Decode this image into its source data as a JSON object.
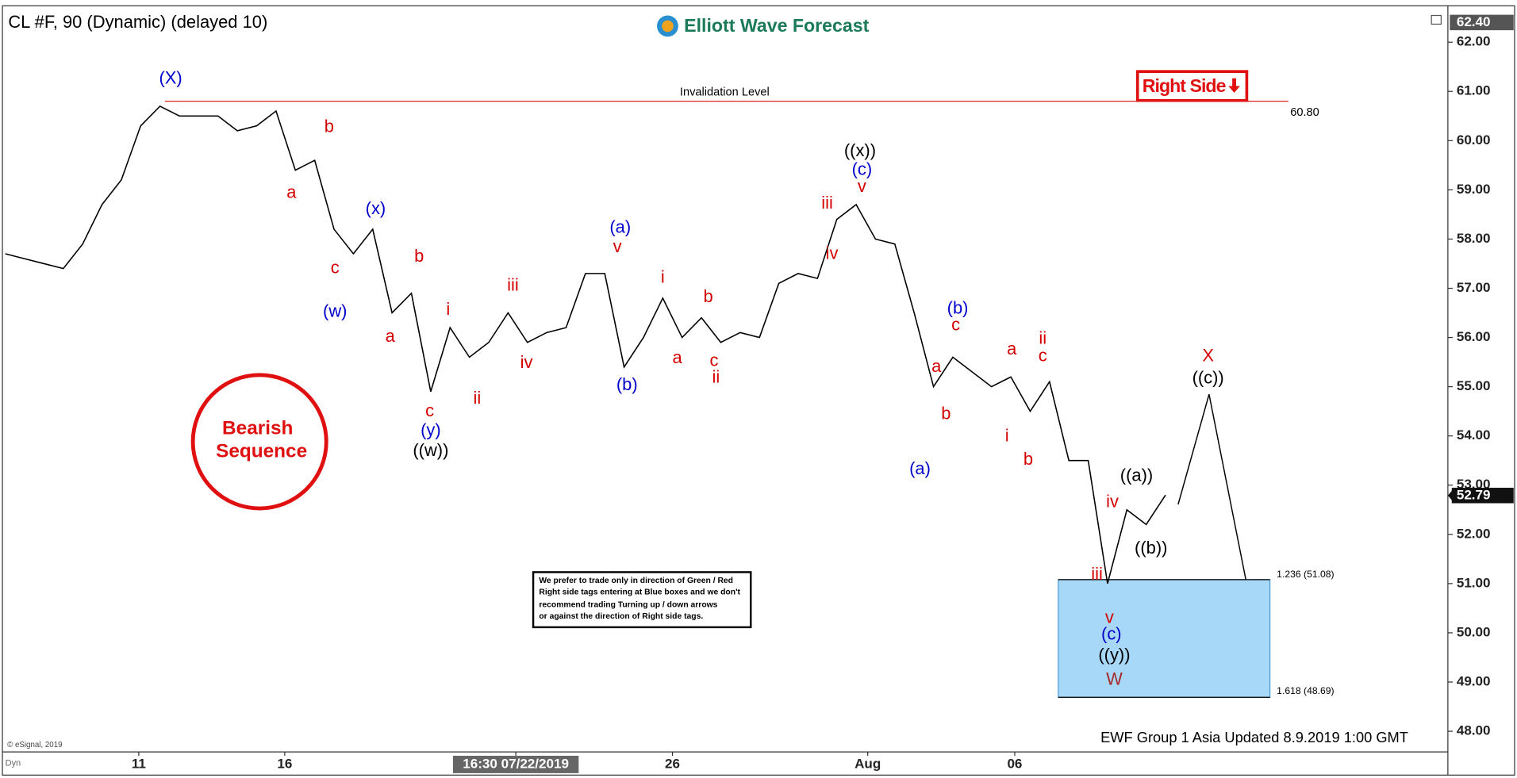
{
  "chart_data": {
    "type": "line",
    "title": "CL #F, 90 (Dynamic) (delayed 10)",
    "brand": "Elliott Wave Forecast",
    "footer": "EWF Group 1 Asia Updated 8.9.2019 1:00 GMT",
    "copyright": "© eSignal, 2019",
    "corner_label": "Dyn",
    "tag": "Right Side",
    "badge": [
      "Bearish",
      "Sequence"
    ],
    "disclaimer": [
      "We prefer to trade only in direction of Green / Red",
      "Right side tags entering at Blue boxes and we don't",
      "recommend trading Turning up / down arrows",
      "or against the direction of Right side tags."
    ],
    "color": "#000000",
    "values": [
      57.7,
      57.6,
      57.5,
      57.4,
      57.9,
      58.7,
      59.2,
      60.3,
      60.7,
      60.5,
      60.5,
      60.5,
      60.2,
      60.3,
      60.6,
      59.4,
      59.6,
      58.2,
      57.7,
      58.2,
      56.5,
      56.9,
      54.9,
      56.2,
      55.6,
      55.9,
      56.5,
      55.9,
      56.1,
      56.2,
      57.3,
      57.3,
      55.4,
      56.0,
      56.8,
      56.0,
      56.4,
      55.9,
      56.1,
      56.0,
      57.1,
      57.3,
      57.2,
      58.4,
      58.7,
      58.0,
      57.9,
      56.5,
      55.0,
      55.6,
      55.3,
      55.0,
      55.2,
      54.5,
      55.1,
      53.5,
      53.5,
      51.0,
      52.5,
      52.2,
      52.8
    ],
    "xlim": [
      -0.25,
      74.6
    ],
    "xticks": [
      {
        "value": 6.9,
        "label": "11"
      },
      {
        "value": 14.45,
        "label": "16"
      },
      {
        "value": 26.4,
        "label": "16:30 07/22/2019"
      },
      {
        "value": 34.5,
        "label": "26"
      },
      {
        "value": 44.6,
        "label": "Aug"
      },
      {
        "value": 52.2,
        "label": "06"
      }
    ],
    "ylim": [
      47.6,
      62.7
    ],
    "yticks": [
      {
        "value": 48,
        "label": "48.00"
      },
      {
        "value": 49,
        "label": "49.00"
      },
      {
        "value": 50,
        "label": "50.00"
      },
      {
        "value": 51,
        "label": "51.00"
      },
      {
        "value": 52,
        "label": "52.00"
      },
      {
        "value": 53,
        "label": "53.00"
      },
      {
        "value": 54,
        "label": "54.00"
      },
      {
        "value": 55,
        "label": "55.00"
      },
      {
        "value": 56,
        "label": "56.00"
      },
      {
        "value": 57,
        "label": "57.00"
      },
      {
        "value": 58,
        "label": "58.00"
      },
      {
        "value": 59,
        "label": "59.00"
      },
      {
        "value": 60,
        "label": "60.00"
      },
      {
        "value": 61,
        "label": "61.00"
      },
      {
        "value": 62,
        "label": "62.00"
      }
    ],
    "invalidation": {
      "label": "Invalidation Level",
      "value": 60.8,
      "value_label": "60.80",
      "color": "#e02020"
    },
    "target_box": {
      "color": "#a8d8f8",
      "top": 51.08,
      "top_label": "1.236 (51.08)",
      "bottom": 48.69,
      "bottom_label": "1.618 (48.69)"
    },
    "last_price": {
      "value": 52.79,
      "label": "52.79"
    },
    "high_price": {
      "value": 62.4,
      "label": "62.40"
    },
    "annotations": [
      {
        "text": "(X)",
        "color": "#0000cc"
      },
      {
        "text": "b",
        "color": "#d40000"
      },
      {
        "text": "a",
        "color": "#d40000"
      },
      {
        "text": "(x)",
        "color": "#0000cc"
      },
      {
        "text": "c",
        "color": "#d40000"
      },
      {
        "text": "(w)",
        "color": "#0000cc"
      },
      {
        "text": "b",
        "color": "#d40000"
      },
      {
        "text": "a",
        "color": "#d40000"
      },
      {
        "text": "iii",
        "color": "#d40000"
      },
      {
        "text": "i",
        "color": "#d40000"
      },
      {
        "text": "iv",
        "color": "#d40000"
      },
      {
        "text": "ii",
        "color": "#d40000"
      },
      {
        "text": "c",
        "color": "#d40000"
      },
      {
        "text": "(y)",
        "color": "#0000cc"
      },
      {
        "text": "((w))",
        "color": "#000000"
      },
      {
        "text": "(a)",
        "color": "#0000cc"
      },
      {
        "text": "v",
        "color": "#d40000"
      },
      {
        "text": "(b)",
        "color": "#0000cc"
      },
      {
        "text": "i",
        "color": "#d40000"
      },
      {
        "text": "a",
        "color": "#d40000"
      },
      {
        "text": "b",
        "color": "#d40000"
      },
      {
        "text": "c",
        "color": "#d40000"
      },
      {
        "text": "ii",
        "color": "#d40000"
      },
      {
        "text": "((x))",
        "color": "#000000"
      },
      {
        "text": "(c)",
        "color": "#0000cc"
      },
      {
        "text": "v",
        "color": "#d40000"
      },
      {
        "text": "iii",
        "color": "#d40000"
      },
      {
        "text": "iv",
        "color": "#d40000"
      },
      {
        "text": "(a)",
        "color": "#0000cc"
      },
      {
        "text": "a",
        "color": "#d40000"
      },
      {
        "text": "b",
        "color": "#d40000"
      },
      {
        "text": "(b)",
        "color": "#0000cc"
      },
      {
        "text": "c",
        "color": "#d40000"
      },
      {
        "text": "a",
        "color": "#d40000"
      },
      {
        "text": "ii",
        "color": "#d40000"
      },
      {
        "text": "c",
        "color": "#d40000"
      },
      {
        "text": "i",
        "color": "#d40000"
      },
      {
        "text": "b",
        "color": "#d40000"
      },
      {
        "text": "((a))",
        "color": "#000000"
      },
      {
        "text": "iv",
        "color": "#d40000"
      },
      {
        "text": "((b))",
        "color": "#000000"
      },
      {
        "text": "iii",
        "color": "#d40000"
      },
      {
        "text": "v",
        "color": "#d40000"
      },
      {
        "text": "(c)",
        "color": "#0000cc"
      },
      {
        "text": "((y))",
        "color": "#000000"
      },
      {
        "text": "W",
        "color": "#a52a2a"
      },
      {
        "text": "X",
        "color": "#d40000"
      },
      {
        "text": "((c))",
        "color": "#000000"
      }
    ]
  }
}
